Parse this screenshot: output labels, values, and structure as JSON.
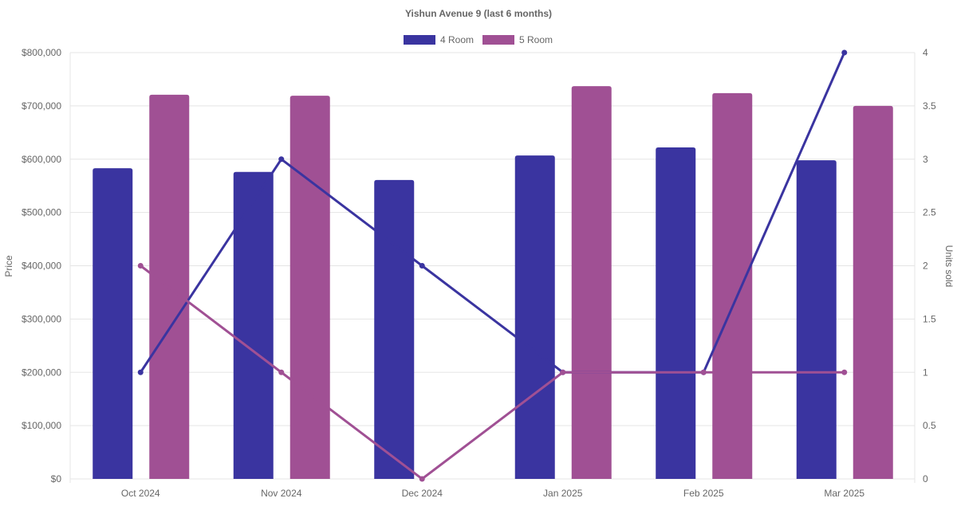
{
  "chart_data": {
    "type": "bar",
    "title": "Yishun Avenue 9 (last 6 months)",
    "categories": [
      "Oct 2024",
      "Nov 2024",
      "Dec 2024",
      "Jan 2025",
      "Feb 2025",
      "Mar 2025"
    ],
    "ylabel": "Price",
    "y2label": "Units sold",
    "ylim": [
      0,
      800000
    ],
    "y2lim": [
      0,
      4
    ],
    "yticks": [
      "$0",
      "$100,000",
      "$200,000",
      "$300,000",
      "$400,000",
      "$500,000",
      "$600,000",
      "$700,000",
      "$800,000"
    ],
    "y2ticks": [
      "0",
      "0.5",
      "1",
      "1.5",
      "2",
      "2.5",
      "3",
      "3.5",
      "4"
    ],
    "legend_position": "top",
    "grid": true,
    "series": [
      {
        "name": "4 Room",
        "type": "bar",
        "axis": "left",
        "color": "#3a34a0",
        "values": [
          583000,
          576000,
          561000,
          607000,
          622000,
          598000
        ]
      },
      {
        "name": "5 Room",
        "type": "bar",
        "axis": "left",
        "color": "#a05094",
        "values": [
          721000,
          719000,
          null,
          737000,
          724000,
          700000
        ]
      },
      {
        "name": "4 Room units",
        "type": "line",
        "axis": "right",
        "color": "#3a34a0",
        "values": [
          1,
          3,
          2,
          1,
          1,
          4
        ]
      },
      {
        "name": "5 Room units",
        "type": "line",
        "axis": "right",
        "color": "#a05094",
        "values": [
          2,
          1,
          0,
          1,
          1,
          1
        ]
      }
    ]
  }
}
